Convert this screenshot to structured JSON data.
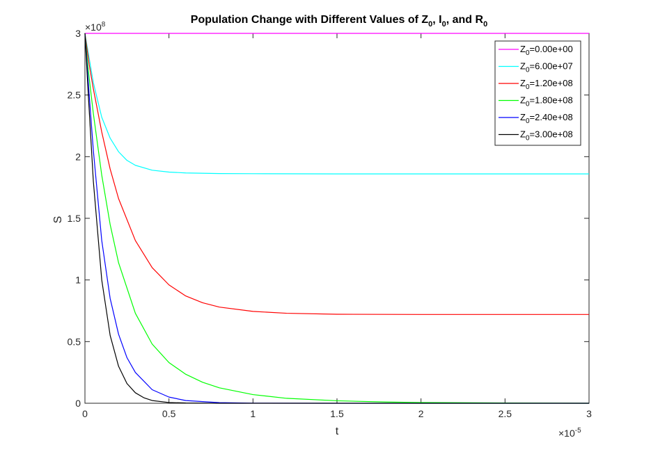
{
  "chart_data": {
    "type": "line",
    "title": {
      "prefix": "Population Change with Different Values of ",
      "sym1": "Z",
      "sub1": "0",
      "sep1": ", ",
      "sym2": "I",
      "sub2": "0",
      "sep2": ", and ",
      "sym3": "R",
      "sub3": "0"
    },
    "xlabel": "t",
    "ylabel": "S",
    "xlim": [
      0,
      3
    ],
    "ylim": [
      0,
      3
    ],
    "x_multiplier": {
      "base": "×10",
      "exp": "-5"
    },
    "y_multiplier": {
      "base": "×10",
      "exp": "8"
    },
    "x_ticks": [
      0,
      0.5,
      1,
      1.5,
      2,
      2.5,
      3
    ],
    "x_tick_labels": [
      "0",
      "0.5",
      "1",
      "1.5",
      "2",
      "2.5",
      "3"
    ],
    "y_ticks": [
      0,
      0.5,
      1,
      1.5,
      2,
      2.5,
      3
    ],
    "y_tick_labels": [
      "0",
      "0.5",
      "1",
      "1.5",
      "2",
      "2.5",
      "3"
    ],
    "grid": false,
    "legend_position": "top-right",
    "series": [
      {
        "name": "Z0=0.00e+00",
        "sym": "Z",
        "sub": "0",
        "value_text": "=0.00e+00",
        "color": "#ff00ff",
        "x": [
          0,
          3
        ],
        "y": [
          3.0,
          3.0
        ]
      },
      {
        "name": "Z0=6.00e+07",
        "sym": "Z",
        "sub": "0",
        "value_text": "=6.00e+07",
        "color": "#00ffff",
        "x": [
          0,
          0.025,
          0.05,
          0.1,
          0.15,
          0.2,
          0.25,
          0.3,
          0.4,
          0.5,
          0.6,
          0.8,
          1.0,
          1.5,
          2.0,
          3.0
        ],
        "y": [
          3.0,
          2.8,
          2.6,
          2.32,
          2.15,
          2.04,
          1.97,
          1.93,
          1.89,
          1.875,
          1.868,
          1.863,
          1.862,
          1.86,
          1.86,
          1.86
        ]
      },
      {
        "name": "Z0=1.20e+08",
        "sym": "Z",
        "sub": "0",
        "value_text": "=1.20e+08",
        "color": "#ff0000",
        "x": [
          0,
          0.025,
          0.05,
          0.1,
          0.15,
          0.2,
          0.3,
          0.4,
          0.5,
          0.6,
          0.7,
          0.8,
          1.0,
          1.2,
          1.5,
          2.0,
          2.5,
          3.0
        ],
        "y": [
          3.0,
          2.75,
          2.55,
          2.2,
          1.9,
          1.66,
          1.32,
          1.1,
          0.96,
          0.87,
          0.815,
          0.78,
          0.745,
          0.73,
          0.722,
          0.72,
          0.72,
          0.72
        ]
      },
      {
        "name": "Z0=1.80e+08",
        "sym": "Z",
        "sub": "0",
        "value_text": "=1.80e+08",
        "color": "#00ff00",
        "x": [
          0,
          0.02,
          0.05,
          0.1,
          0.15,
          0.2,
          0.3,
          0.4,
          0.5,
          0.6,
          0.7,
          0.8,
          1.0,
          1.2,
          1.5,
          1.8,
          2.0,
          2.5,
          3.0
        ],
        "y": [
          3.0,
          2.7,
          2.35,
          1.85,
          1.45,
          1.14,
          0.73,
          0.48,
          0.33,
          0.235,
          0.17,
          0.125,
          0.07,
          0.04,
          0.02,
          0.01,
          0.006,
          0.002,
          0.0
        ]
      },
      {
        "name": "Z0=2.40e+08",
        "sym": "Z",
        "sub": "0",
        "value_text": "=2.40e+08",
        "color": "#0000ff",
        "x": [
          0,
          0.02,
          0.05,
          0.1,
          0.15,
          0.2,
          0.25,
          0.3,
          0.4,
          0.5,
          0.6,
          0.8,
          1.0,
          1.5,
          3.0
        ],
        "y": [
          3.0,
          2.6,
          2.05,
          1.32,
          0.85,
          0.56,
          0.37,
          0.25,
          0.11,
          0.05,
          0.022,
          0.005,
          0.001,
          0.0,
          0.0
        ]
      },
      {
        "name": "Z0=3.00e+08",
        "sym": "Z",
        "sub": "0",
        "value_text": "=3.00e+08",
        "color": "#000000",
        "x": [
          0,
          0.02,
          0.05,
          0.1,
          0.15,
          0.2,
          0.25,
          0.3,
          0.35,
          0.4,
          0.5,
          0.6,
          0.8,
          1.0,
          3.0
        ],
        "y": [
          3.0,
          2.5,
          1.8,
          1.0,
          0.55,
          0.3,
          0.16,
          0.085,
          0.045,
          0.022,
          0.006,
          0.002,
          0.0,
          0.0,
          0.0
        ]
      }
    ]
  }
}
